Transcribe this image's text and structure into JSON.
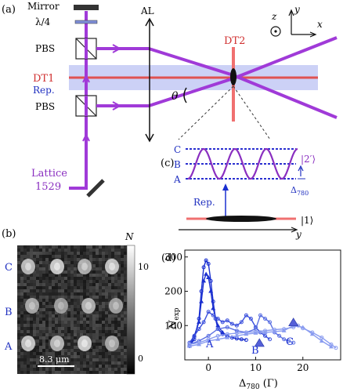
{
  "panel_a": {
    "label": "(a)",
    "mirror": "Mirror",
    "waveplate": "λ/4",
    "pbs_top": "PBS",
    "pbs_bottom": "PBS",
    "dt1": "DT1",
    "rep": "Rep.",
    "lattice_1": "Lattice",
    "lattice_2": "1529",
    "al": "AL",
    "dt2": "DT2",
    "theta": "θ",
    "axis_z": "z",
    "axis_y": "y",
    "axis_x": "x"
  },
  "panel_c": {
    "label": "(c)",
    "level_c": "C",
    "level_b": "B",
    "level_a": "A",
    "state_upper": "|2′⟩",
    "detuning": "Δ780",
    "rep": "Rep.",
    "state_lower": "|1⟩",
    "axis_y": "y"
  },
  "panel_b": {
    "label": "(b)",
    "row_c": "C",
    "row_b": "B",
    "row_a": "A",
    "scale": "8.3 μm",
    "colorbar_label": "N",
    "colorbar_ticks": [
      "10",
      "0"
    ]
  },
  "panel_d": {
    "label": "(d)",
    "chart_data": {
      "type": "scatter",
      "ylabel": "N_exp",
      "xlabel": "Δ780 (Γ)",
      "x_ticks": [
        0,
        10,
        20
      ],
      "y_ticks": [
        100,
        200,
        300
      ],
      "xlim": [
        -5,
        28
      ],
      "ylim": [
        0,
        320
      ],
      "annotations": [
        "A",
        "B",
        "C"
      ],
      "series": [
        {
          "color": "#1a2fd0",
          "marker": "circle",
          "x": [
            -4,
            -3,
            -2,
            -1.5,
            -1,
            -0.5,
            0,
            0.5,
            1,
            1.5,
            2,
            3,
            4,
            5,
            6,
            7,
            8
          ],
          "y": [
            40,
            60,
            120,
            200,
            270,
            290,
            280,
            230,
            170,
            120,
            90,
            75,
            70,
            65,
            62,
            60,
            58
          ]
        },
        {
          "color": "#1a2fd0",
          "marker": "triangle",
          "x": [
            -4,
            -3,
            -2,
            -1.5,
            -1,
            -0.5,
            0,
            0.5,
            1,
            2,
            3,
            4
          ],
          "y": [
            40,
            70,
            110,
            170,
            230,
            250,
            240,
            200,
            150,
            100,
            80,
            70
          ]
        },
        {
          "color": "#3a4fdc",
          "marker": "circle",
          "x": [
            -4,
            -3,
            -2,
            -1,
            0,
            1,
            2,
            3,
            4,
            5,
            6,
            7,
            8,
            9,
            10,
            11,
            12,
            13
          ],
          "y": [
            50,
            70,
            90,
            110,
            140,
            130,
            120,
            110,
            115,
            105,
            100,
            110,
            130,
            120,
            95,
            80,
            70,
            60
          ]
        },
        {
          "color": "#5a6fe2",
          "marker": "circle",
          "x": [
            -4,
            -2,
            0,
            2,
            4,
            6,
            8,
            10,
            11,
            12,
            13,
            14,
            15,
            16,
            17,
            18
          ],
          "y": [
            45,
            55,
            70,
            90,
            95,
            85,
            80,
            90,
            130,
            120,
            110,
            80,
            70,
            60,
            55,
            50
          ]
        },
        {
          "color": "#8a9cf0",
          "marker": "circle",
          "x": [
            -4,
            -2,
            0,
            2,
            4,
            6,
            8,
            10,
            12,
            14,
            16,
            18,
            19,
            20,
            22,
            24,
            26,
            27
          ],
          "y": [
            45,
            50,
            60,
            70,
            75,
            78,
            80,
            82,
            85,
            88,
            90,
            95,
            100,
            92,
            80,
            65,
            45,
            35
          ]
        },
        {
          "color": "#8a9cf0",
          "marker": "triangle",
          "x": [
            -4,
            -2,
            0,
            2,
            4,
            6,
            8,
            10,
            12,
            14,
            16,
            18,
            20,
            22,
            24,
            26
          ],
          "y": [
            40,
            45,
            55,
            60,
            65,
            70,
            75,
            78,
            80,
            82,
            85,
            100,
            95,
            75,
            55,
            38
          ]
        }
      ],
      "triangles": [
        {
          "x": 10.8,
          "y": 48
        },
        {
          "x": 18,
          "y": 108
        }
      ]
    }
  }
}
